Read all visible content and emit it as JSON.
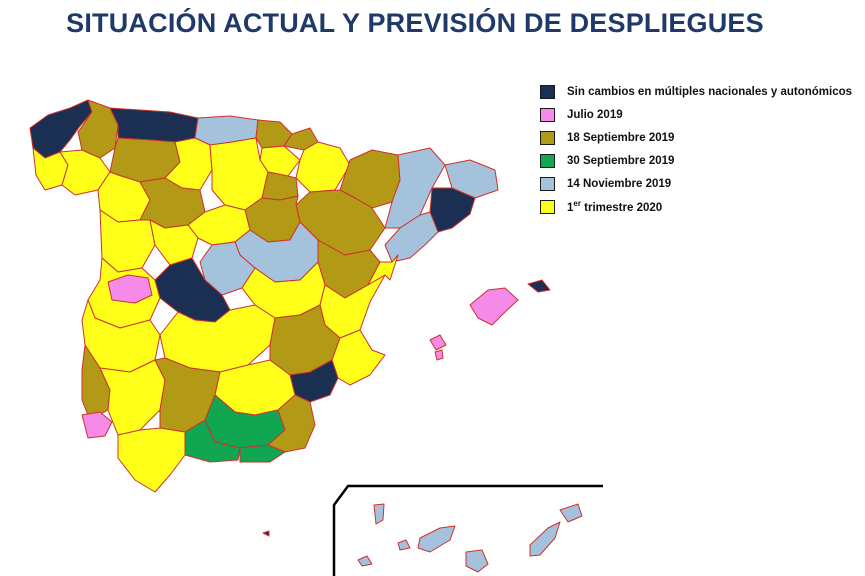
{
  "title": "SITUACIÓN ACTUAL Y PREVISIÓN DE DESPLIEGUES",
  "legend": [
    {
      "key": "sin_cambios",
      "label": "Sin cambios  en múltiples nacionales  y autonómicos",
      "color": "#1B2F52"
    },
    {
      "key": "julio_2019",
      "label": "Julio 2019",
      "color": "#F58AE8"
    },
    {
      "key": "sep18_2019",
      "label": "18 Septiembre 2019",
      "color": "#B39A16"
    },
    {
      "key": "sep30_2019",
      "label": "30 Septiembre 2019",
      "color": "#11A651"
    },
    {
      "key": "nov14_2019",
      "label": "14 Noviembre 2019",
      "color": "#A5C2DC"
    },
    {
      "key": "q1_2020",
      "ordinal": "1",
      "ordinal_sup": "er",
      "label": " trimestre 2020",
      "color": "#FFFF19"
    }
  ],
  "colors": {
    "border": "#D0302B",
    "inset_frame": "#000000"
  }
}
